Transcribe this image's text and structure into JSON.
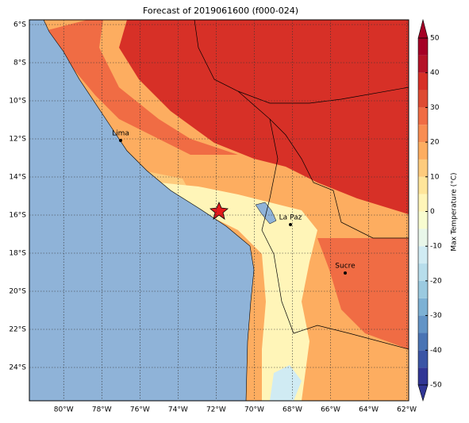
{
  "title": "Forecast of 2019061600 (f000-024)",
  "map": {
    "xlim": [
      -81.8,
      -61.9
    ],
    "ylim": [
      -25.75,
      -5.75
    ],
    "xticks": [
      {
        "value": -80,
        "label": "80°W"
      },
      {
        "value": -78,
        "label": "78°W"
      },
      {
        "value": -76,
        "label": "76°W"
      },
      {
        "value": -74,
        "label": "74°W"
      },
      {
        "value": -72,
        "label": "72°W"
      },
      {
        "value": -70,
        "label": "70°W"
      },
      {
        "value": -68,
        "label": "68°W"
      },
      {
        "value": -66,
        "label": "66°W"
      },
      {
        "value": -64,
        "label": "64°W"
      },
      {
        "value": -62,
        "label": "62°W"
      }
    ],
    "yticks": [
      {
        "value": -6,
        "label": "6°S"
      },
      {
        "value": -8,
        "label": "8°S"
      },
      {
        "value": -10,
        "label": "10°S"
      },
      {
        "value": -12,
        "label": "12°S"
      },
      {
        "value": -14,
        "label": "14°S"
      },
      {
        "value": -16,
        "label": "16°S"
      },
      {
        "value": -18,
        "label": "18°S"
      },
      {
        "value": -20,
        "label": "20°S"
      },
      {
        "value": -22,
        "label": "22°S"
      },
      {
        "value": -24,
        "label": "24°S"
      }
    ],
    "cities": [
      "Lima",
      "La Paz",
      "Sucre"
    ]
  },
  "colorbar": {
    "label": "Max Temperature (°C)",
    "lim": [
      -50,
      50
    ],
    "ticks": [
      -50,
      -40,
      -30,
      -20,
      -10,
      0,
      10,
      20,
      30,
      40,
      50
    ],
    "colors": [
      "#313695",
      "#3b55a5",
      "#4a74b4",
      "#6394c6",
      "#7db1d4",
      "#9bcae0",
      "#b7ddeb",
      "#d0ebf3",
      "#e8f6e9",
      "#f8fcd0",
      "#fff5b8",
      "#fee59a",
      "#fdcb7d",
      "#fdad60",
      "#f88d52",
      "#f06c44",
      "#de4b33",
      "#d73027",
      "#b41328",
      "#a50026"
    ]
  }
}
